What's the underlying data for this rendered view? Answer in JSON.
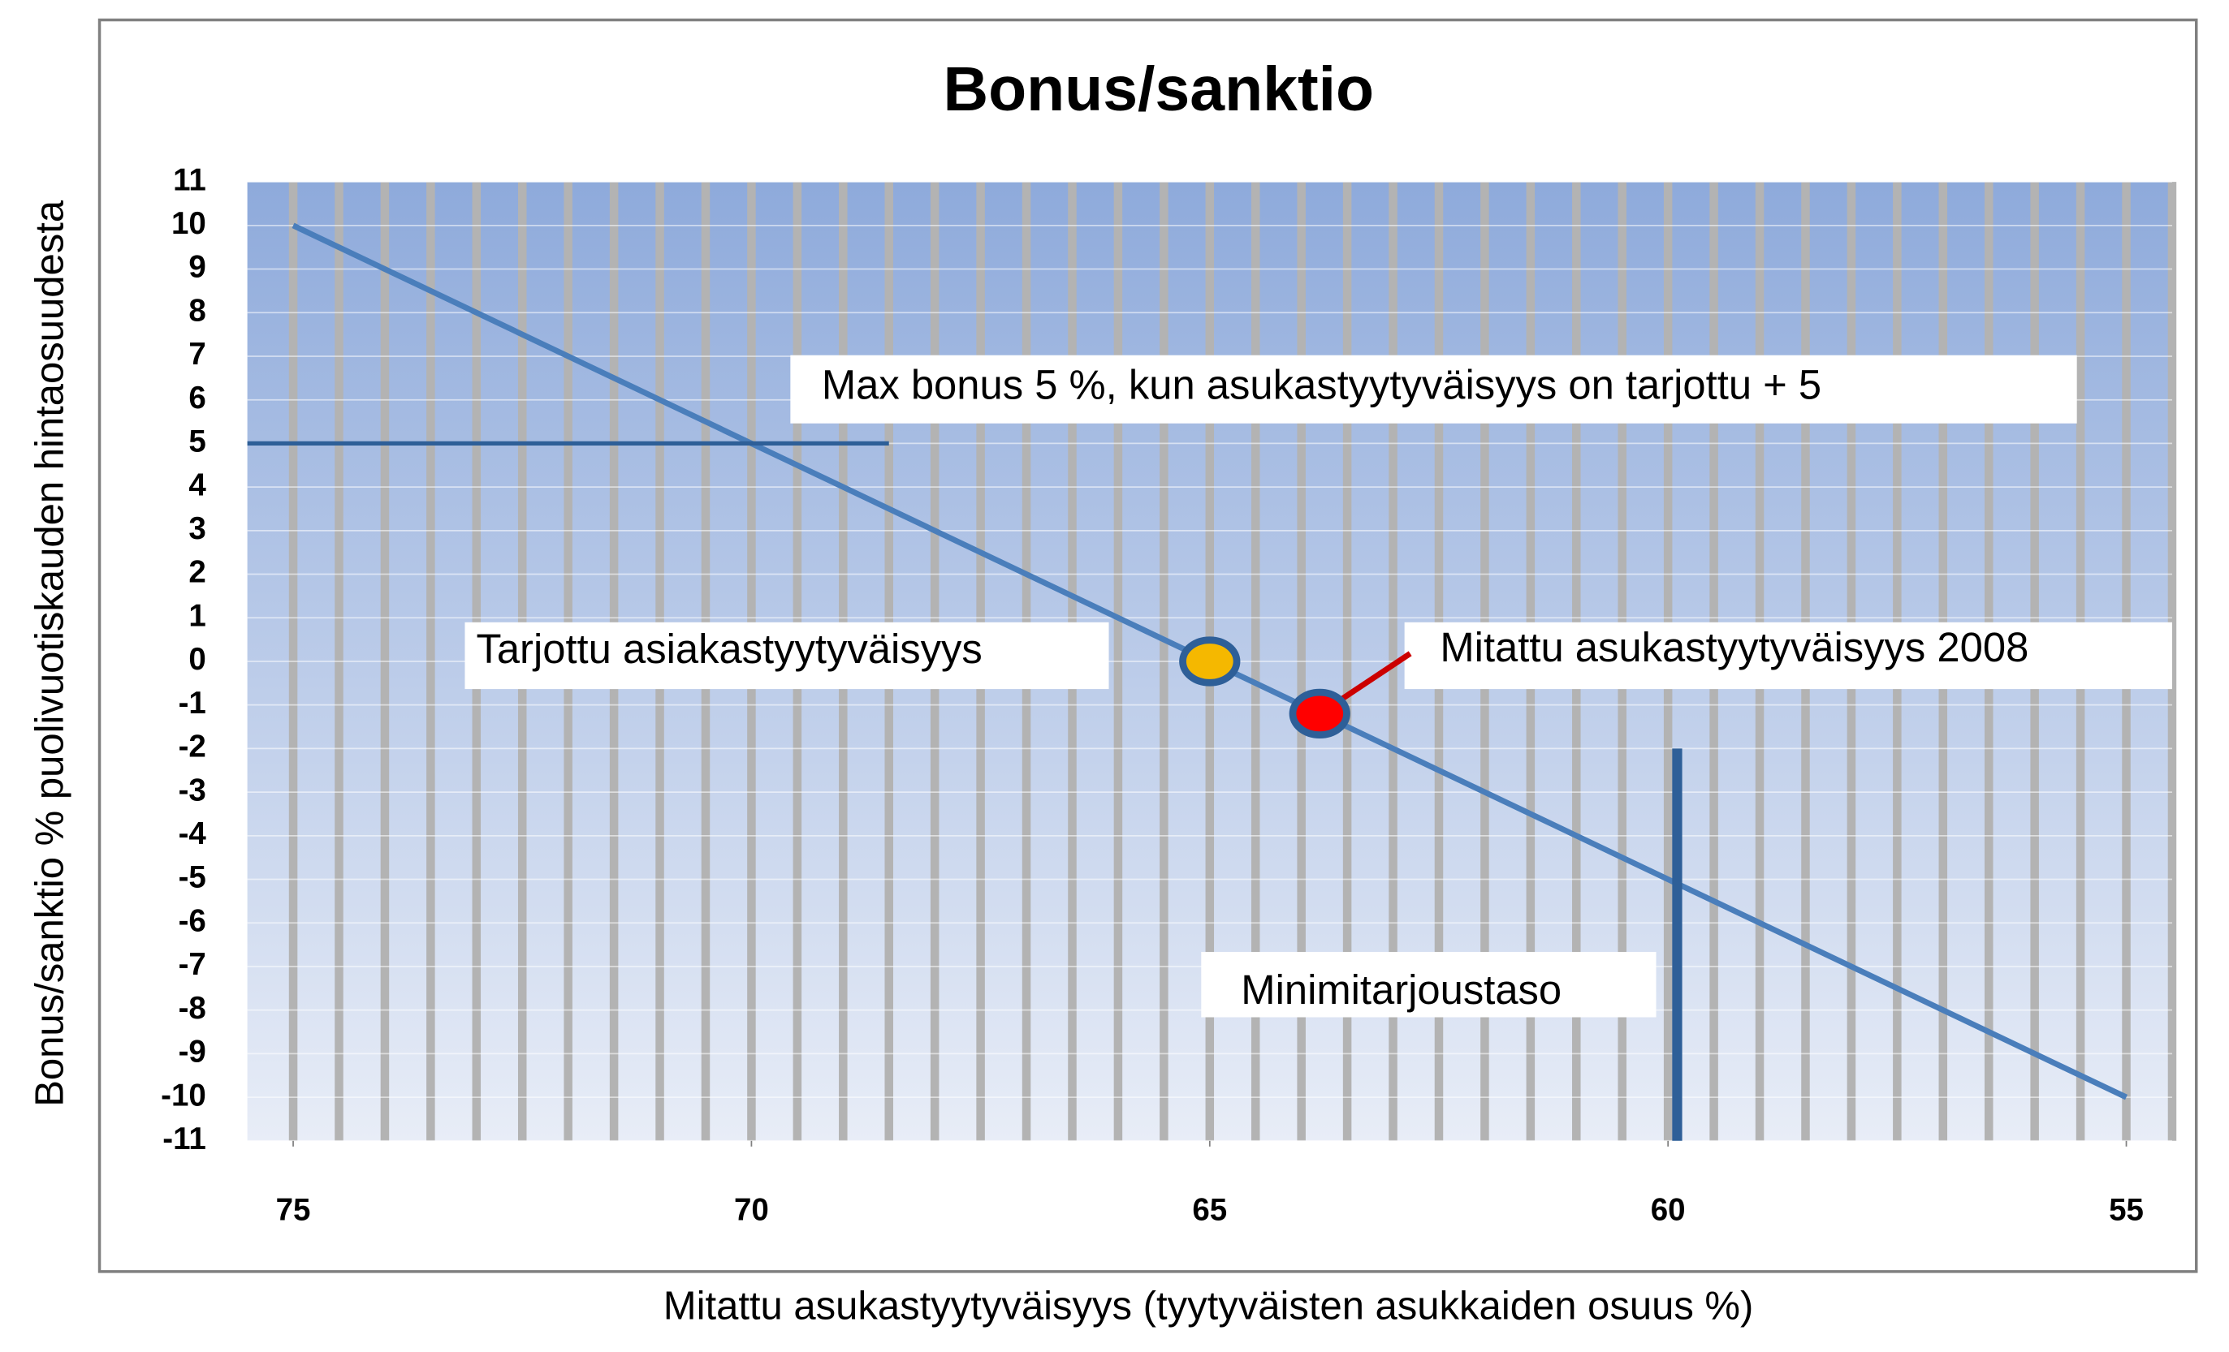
{
  "chart_data": {
    "type": "line",
    "title": "Bonus/sanktio",
    "x_label": "Mitattu asukastyytyväisyys  (tyytyväisten asukkaiden  osuus %)",
    "y_label": "Bonus/sanktio % puolivuotiskauden hintaosuudesta",
    "xlim": [
      75.5,
      54.5
    ],
    "ylim": [
      -11,
      11
    ],
    "xticks": [
      75,
      70,
      65,
      60,
      55
    ],
    "yticks": [
      -11,
      -10,
      -9,
      -8,
      -7,
      -6,
      -5,
      -4,
      -3,
      -2,
      -1,
      0,
      1,
      2,
      3,
      4,
      5,
      6,
      7,
      8,
      9,
      10,
      11
    ],
    "grid": true,
    "series": [
      {
        "color": "#4a7ebb",
        "x": [
          75,
          55
        ],
        "values": [
          10,
          -10
        ]
      }
    ],
    "markers": [
      {
        "x": 65,
        "y": 0,
        "color": "#f5b800"
      },
      {
        "x": 63.8,
        "y": -1.2,
        "color": "#ff0000"
      }
    ],
    "hlines": [
      {
        "y": 5,
        "x": [
          75.5,
          68.5
        ],
        "color": "#2e5f98"
      }
    ],
    "vlines": [
      {
        "x": 59.9,
        "y": [
          -2,
          -11
        ],
        "color": "#2e5f98"
      }
    ],
    "annotations": [
      "Max bonus 5 %, kun asukastyytyväisyys on tarjottu + 5",
      "Tarjottu asiakastyytyväisyys",
      "Mitattu asukastyytyväisyys 2008",
      "Minimitarjoustaso"
    ]
  }
}
